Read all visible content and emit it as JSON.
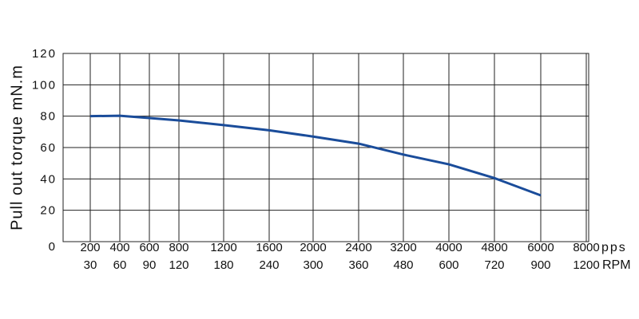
{
  "chart_data": {
    "type": "line",
    "y_label": "Pull out torque mN.m",
    "x_unit": "pps",
    "x2_unit": "RPM",
    "categories": [
      "200",
      "400",
      "600",
      "800",
      "1200",
      "1600",
      "2000",
      "2400",
      "3200",
      "4000",
      "4800",
      "6000",
      "8000"
    ],
    "rpm": [
      "30",
      "60",
      "90",
      "120",
      "180",
      "240",
      "300",
      "360",
      "480",
      "600",
      "720",
      "900",
      "1200"
    ],
    "series": [
      {
        "name": "Pull out torque",
        "color": "#1a4c9a",
        "values": [
          80,
          80.3,
          78.8,
          77.3,
          74.3,
          71,
          67,
          62.5,
          55.5,
          49.3,
          40.5,
          29.5,
          null
        ]
      }
    ],
    "ylim": [
      0,
      120
    ],
    "yticks": [
      0,
      20,
      40,
      60,
      80,
      100,
      120
    ],
    "grid": true
  }
}
